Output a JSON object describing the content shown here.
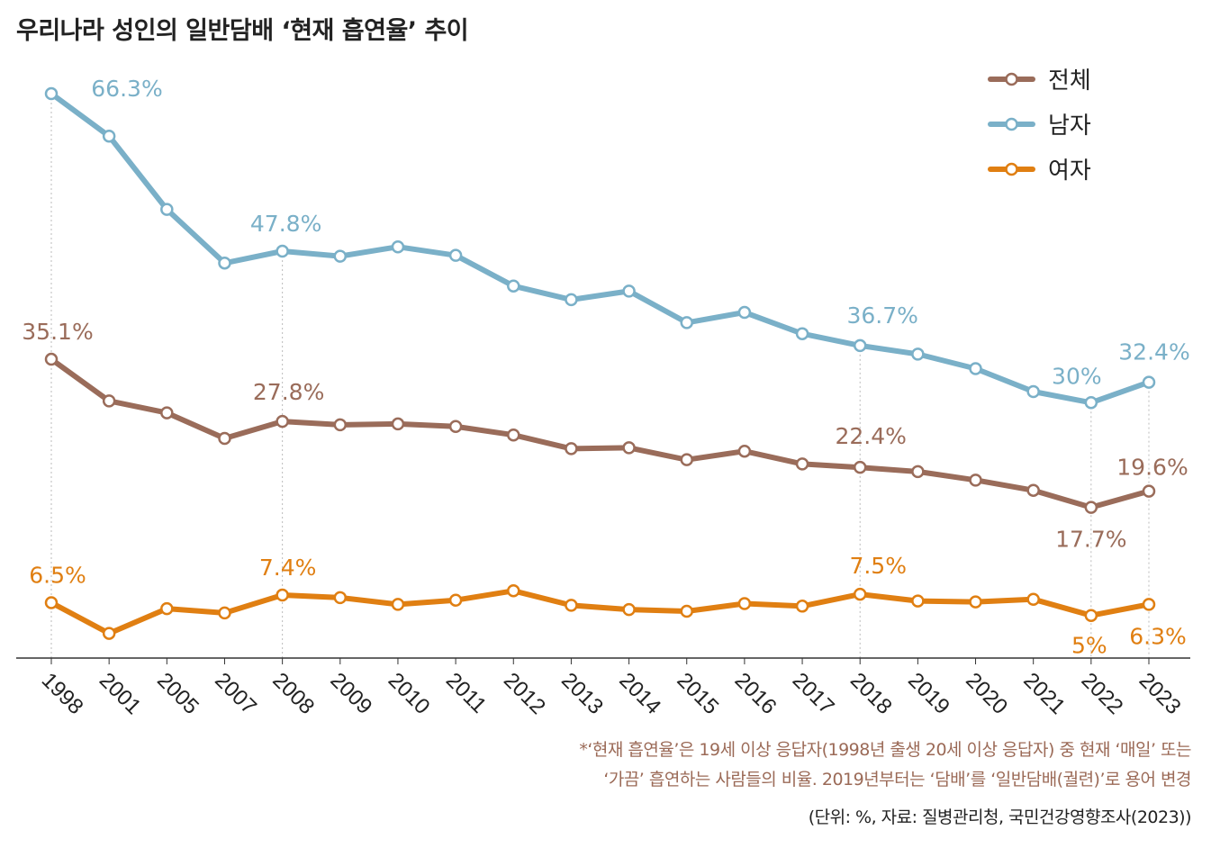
{
  "colors": {
    "total": "#9a6c5a",
    "male": "#7ab0c8",
    "female": "#e07f12",
    "axis": "#333333",
    "guide": "#bbbbbb",
    "note": "#9b6a57"
  },
  "chart_data": {
    "type": "line",
    "title": "우리나라 성인의 일반담배 ‘현재 흡연율’ 추이",
    "categories": [
      "1998",
      "2001",
      "2005",
      "2007",
      "2008",
      "2009",
      "2010",
      "2011",
      "2012",
      "2013",
      "2014",
      "2015",
      "2016",
      "2017",
      "2018",
      "2019",
      "2020",
      "2021",
      "2022",
      "2023"
    ],
    "ylim": [
      0,
      72
    ],
    "grid": false,
    "legend_position": "top-right",
    "series": [
      {
        "key": "total",
        "name": "전체",
        "values": [
          35.1,
          30.2,
          28.8,
          25.8,
          27.8,
          27.4,
          27.5,
          27.2,
          26.2,
          24.6,
          24.7,
          23.3,
          24.3,
          22.8,
          22.4,
          21.9,
          20.9,
          19.7,
          17.7,
          19.6
        ]
      },
      {
        "key": "male",
        "name": "남자",
        "values": [
          66.3,
          61.3,
          52.7,
          46.4,
          47.8,
          47.2,
          48.3,
          47.3,
          43.7,
          42.1,
          43.1,
          39.4,
          40.6,
          38.1,
          36.7,
          35.7,
          34.0,
          31.3,
          30.0,
          32.4
        ]
      },
      {
        "key": "female",
        "name": "여자",
        "values": [
          6.5,
          2.9,
          5.8,
          5.3,
          7.4,
          7.1,
          6.3,
          6.8,
          7.9,
          6.2,
          5.7,
          5.5,
          6.4,
          6.1,
          7.5,
          6.7,
          6.6,
          6.9,
          5.0,
          6.3
        ]
      }
    ],
    "annotations": [
      {
        "id": "male-1998",
        "text": "66.3%",
        "series": "male",
        "index": 0
      },
      {
        "id": "male-2008",
        "text": "47.8%",
        "series": "male",
        "index": 4
      },
      {
        "id": "male-2018",
        "text": "36.7%",
        "series": "male",
        "index": 14
      },
      {
        "id": "male-2022",
        "text": "30%",
        "series": "male",
        "index": 18
      },
      {
        "id": "male-2023",
        "text": "32.4%",
        "series": "male",
        "index": 19
      },
      {
        "id": "total-1998",
        "text": "35.1%",
        "series": "total",
        "index": 0
      },
      {
        "id": "total-2008",
        "text": "27.8%",
        "series": "total",
        "index": 4
      },
      {
        "id": "total-2018",
        "text": "22.4%",
        "series": "total",
        "index": 14
      },
      {
        "id": "total-2022",
        "text": "17.7%",
        "series": "total",
        "index": 18
      },
      {
        "id": "total-2023",
        "text": "19.6%",
        "series": "total",
        "index": 19
      },
      {
        "id": "female-1998",
        "text": "6.5%",
        "series": "female",
        "index": 0
      },
      {
        "id": "female-2008",
        "text": "7.4%",
        "series": "female",
        "index": 4
      },
      {
        "id": "female-2018",
        "text": "7.5%",
        "series": "female",
        "index": 14
      },
      {
        "id": "female-2022",
        "text": "5%",
        "series": "female",
        "index": 18
      },
      {
        "id": "female-2023",
        "text": "6.3%",
        "series": "female",
        "index": 19
      }
    ]
  },
  "notes": {
    "line1": "*‘현재 흡연율’은 19세 이상 응답자(1998년 출생 20세 이상 응답자) 중 현재 ‘매일’ 또는",
    "line2": "‘가끔’ 흡연하는 사람들의 비율. 2019년부터는 ‘담배’를 ‘일반담배(궐련)’로 용어 변경",
    "source": "(단위: %, 자료: 질병관리청, 국민건강영향조사(2023))"
  }
}
